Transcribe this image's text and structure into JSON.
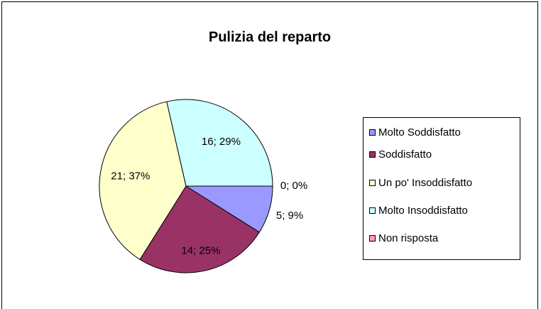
{
  "chart_data": {
    "type": "pie",
    "title": "Pulizia del reparto",
    "categories": [
      "Molto Soddisfatto",
      "Soddisfatto",
      "Un po' Insoddisfatto",
      "Molto Insoddisfatto",
      "Non risposta"
    ],
    "values": [
      5,
      14,
      21,
      16,
      0
    ],
    "value_labels": [
      "5; 9%",
      "14; 25%",
      "21; 37%",
      "16; 29%",
      "0; 0%"
    ],
    "colors": [
      "#9999ff",
      "#993366",
      "#ffffcc",
      "#ccffff",
      "#ff99cc"
    ],
    "legend": "right"
  }
}
